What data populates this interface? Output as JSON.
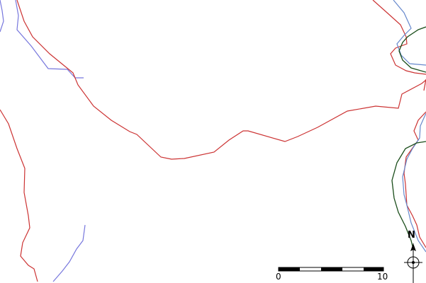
{
  "map": {
    "colors": {
      "road": "#cc3333",
      "water": "#7777dd",
      "boundary_dark": "#1a4d1a",
      "water_light": "#6688cc"
    },
    "scale_bar": {
      "labels": [
        "0",
        "10"
      ]
    },
    "compass": {
      "north_label": "N",
      "icon": "north-arrow-icon"
    }
  }
}
